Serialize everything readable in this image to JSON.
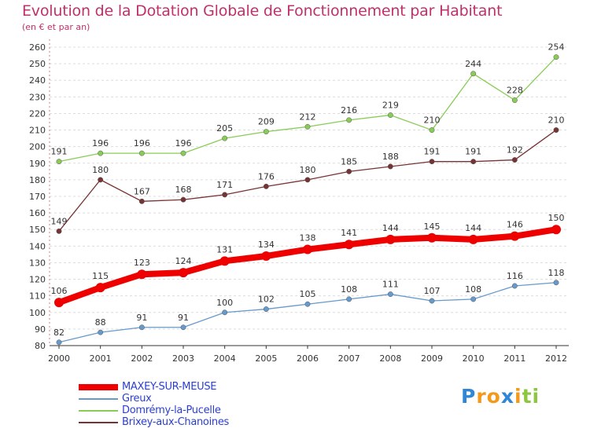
{
  "chart_data": {
    "type": "line",
    "title": "Evolution de la Dotation Globale de Fonctionnement par Habitant",
    "subtitle": "(en € et par an)",
    "xlabel": "",
    "ylabel": "",
    "x": [
      "2000",
      "2001",
      "2002",
      "2003",
      "2004",
      "2005",
      "2006",
      "2007",
      "2008",
      "2009",
      "2010",
      "2011",
      "2012"
    ],
    "ylim": [
      80,
      260
    ],
    "yticks": [
      80,
      90,
      100,
      110,
      120,
      130,
      140,
      150,
      160,
      170,
      180,
      190,
      200,
      210,
      220,
      230,
      240,
      250,
      260
    ],
    "grid": "horizontal-dashed",
    "legend_position": "bottom-left",
    "series": [
      {
        "name": "MAXEY-SUR-MEUSE",
        "color": "#ee0000",
        "values": [
          106,
          115,
          123,
          124,
          131,
          134,
          138,
          141,
          144,
          145,
          144,
          146,
          150
        ]
      },
      {
        "name": "Greux",
        "color": "#6699cc",
        "values": [
          82,
          88,
          91,
          91,
          100,
          102,
          105,
          108,
          111,
          107,
          108,
          116,
          118
        ]
      },
      {
        "name": "Domrémy-la-Pucelle",
        "color": "#88cc55",
        "values": [
          191,
          196,
          196,
          196,
          205,
          209,
          212,
          216,
          219,
          210,
          244,
          228,
          254
        ]
      },
      {
        "name": "Brixey-aux-Chanoines",
        "color": "#773333",
        "values": [
          149,
          180,
          167,
          168,
          171,
          176,
          180,
          185,
          188,
          191,
          191,
          192,
          210
        ]
      }
    ]
  },
  "logo": {
    "letters": [
      "P",
      "r",
      "o",
      "x",
      "i",
      "t",
      "i"
    ],
    "colors": [
      "#2f86d6",
      "#f39a1c",
      "#f39a1c",
      "#2f86d6",
      "#f39a1c",
      "#8dc63f",
      "#8dc63f"
    ]
  }
}
